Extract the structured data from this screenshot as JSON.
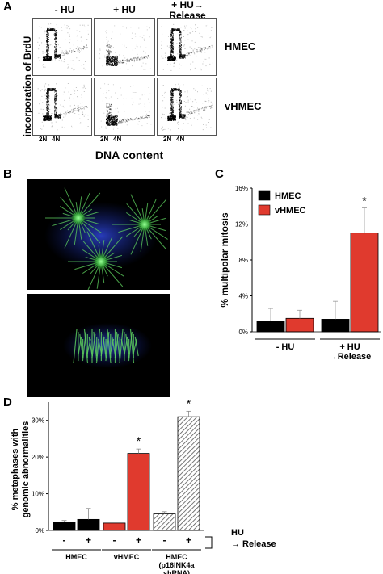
{
  "panel_a": {
    "label": "A",
    "columns": [
      "- HU",
      "+ HU",
      "+ HU→\nRelease"
    ],
    "rows": [
      "HMEC",
      "vHMEC"
    ],
    "y_axis_label": "incorporation of  BrdU",
    "x_tick_2n": "2N",
    "x_tick_4n": "4N",
    "x_axis_label": "DNA content"
  },
  "panel_b": {
    "label": "B"
  },
  "panel_c": {
    "label": "C"
  },
  "panel_d": {
    "label": "D"
  },
  "colors": {
    "hmec": "#000000",
    "vhmec": "#e03a2e",
    "hatched": "#888888"
  },
  "chart_data": [
    {
      "type": "bar",
      "panel": "C",
      "title": "",
      "xlabel": "",
      "ylabel": "% multipolar mitosis",
      "ylim": [
        0,
        16
      ],
      "yticks": [
        "0%",
        "4%",
        "8%",
        "12%",
        "16%"
      ],
      "categories": [
        "- HU",
        "+ HU\n→Release"
      ],
      "series": [
        {
          "name": "HMEC",
          "values": [
            1.2,
            1.4
          ],
          "errors": [
            1.4,
            2.0
          ]
        },
        {
          "name": "vHMEC",
          "values": [
            1.5,
            11.0
          ],
          "errors": [
            0.9,
            2.8
          ]
        }
      ],
      "significance": [
        {
          "series": "vHMEC",
          "category": 1,
          "mark": "*"
        }
      ],
      "legend": "top-left"
    },
    {
      "type": "bar",
      "panel": "D",
      "title": "",
      "xlabel": "",
      "ylabel": "% metaphases with\ngenomic abnormalities",
      "ylim": [
        0,
        35
      ],
      "yticks": [
        "0%",
        "10%",
        "20%",
        "30%"
      ],
      "groups": [
        "HMEC",
        "vHMEC",
        "HMEC\n(p16INK4a\nshRNA)"
      ],
      "treatment_labels": [
        "-",
        "+"
      ],
      "treatment_caption": "HU\n→ Release",
      "bars": [
        {
          "group": 0,
          "treatment": "-",
          "value": 2.2,
          "error": 0.5
        },
        {
          "group": 0,
          "treatment": "+",
          "value": 3.0,
          "error": 3.0
        },
        {
          "group": 1,
          "treatment": "-",
          "value": 2.0,
          "error": 0.0
        },
        {
          "group": 1,
          "treatment": "+",
          "value": 21.0,
          "error": 1.2,
          "mark": "*"
        },
        {
          "group": 2,
          "treatment": "-",
          "value": 4.5,
          "error": 0.6
        },
        {
          "group": 2,
          "treatment": "+",
          "value": 31.0,
          "error": 1.5,
          "mark": "*"
        }
      ]
    }
  ]
}
